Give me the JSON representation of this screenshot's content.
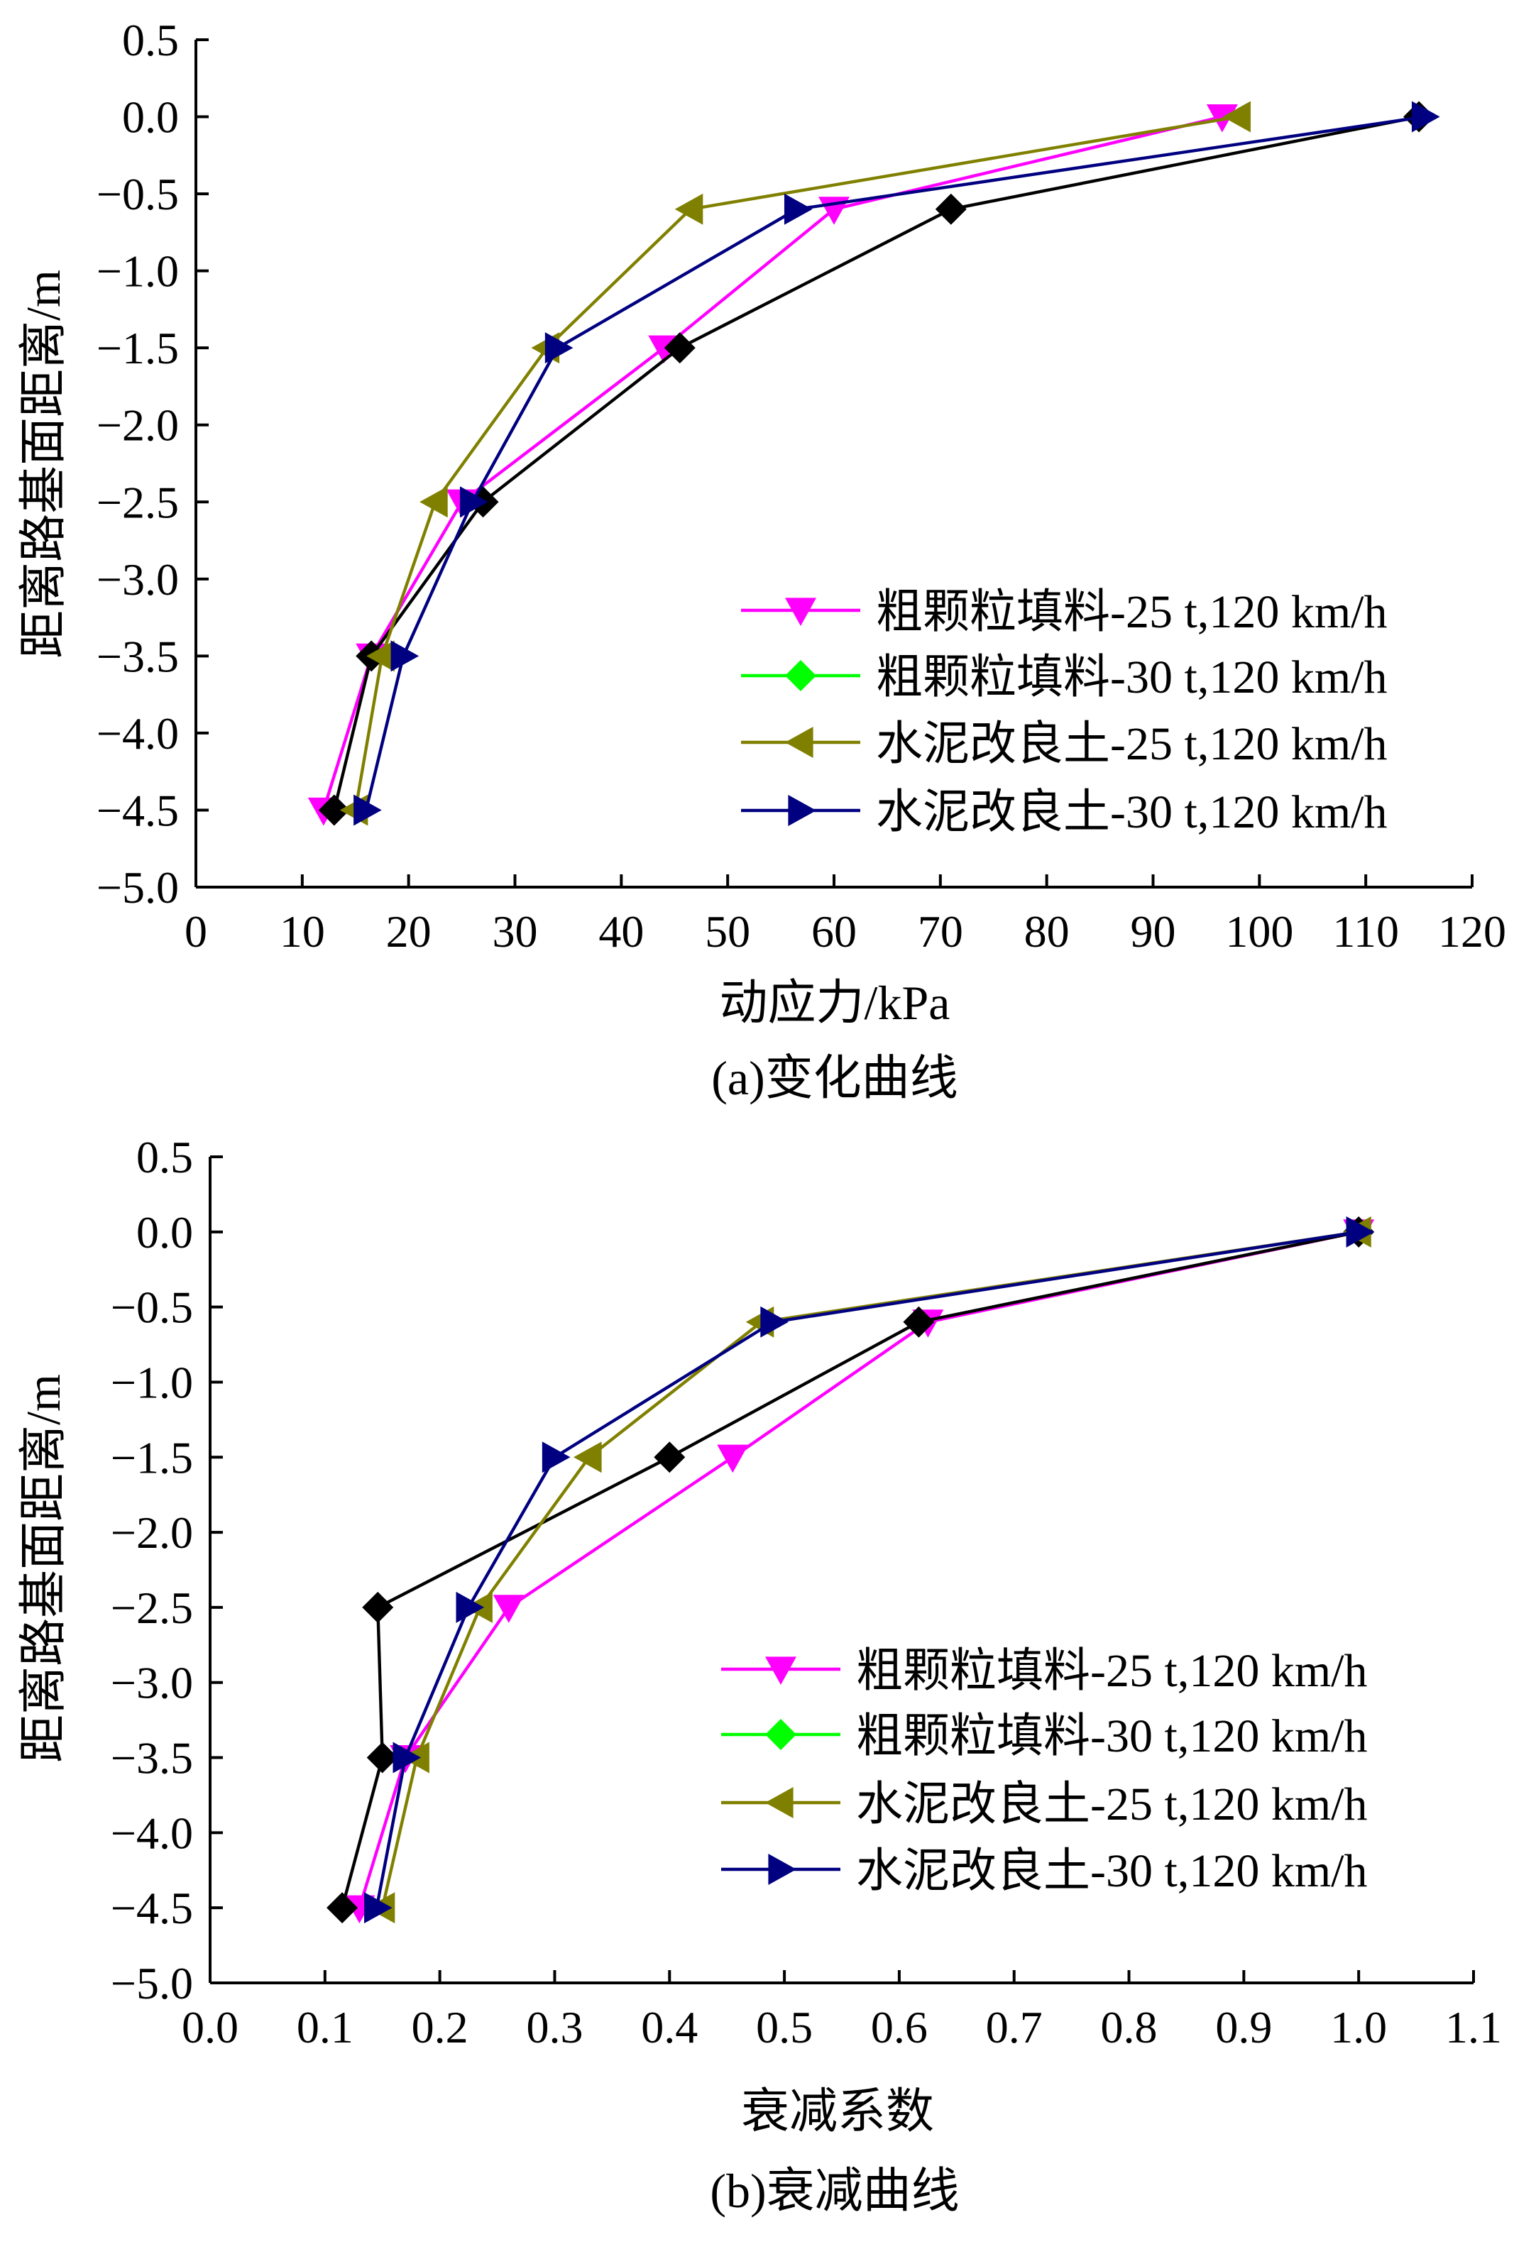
{
  "chart_data": [
    {
      "type": "line",
      "caption": "(a)变化曲线",
      "xlabel": "动应力/kPa",
      "ylabel": "距离路基面距离/m",
      "xlim": [
        0,
        120
      ],
      "ylim": [
        -5.0,
        0.5
      ],
      "xticks": [
        "0",
        "10",
        "20",
        "30",
        "40",
        "50",
        "60",
        "70",
        "80",
        "90",
        "100",
        "110",
        "120"
      ],
      "yticks": [
        "0.5",
        "0.0",
        "-0.5",
        "-1.0",
        "-1.5",
        "-2.0",
        "-2.5",
        "-3.0",
        "-3.5",
        "-4.0",
        "-4.5",
        "-5.0"
      ],
      "grid": false,
      "legend_position": "bottom-right",
      "y": [
        0,
        -0.6,
        -1.5,
        -2.5,
        -3.5,
        -4.5
      ],
      "series": [
        {
          "name": "粗颗粒填料-25 t,120 km/h",
          "color": "#ff00ff",
          "line_color": "#ff00ff",
          "marker": "triangle-down",
          "x": [
            96.5,
            60,
            44,
            25,
            16.5,
            12
          ]
        },
        {
          "name": "粗颗粒填料-30 t,120 km/h",
          "color": "#00ff00",
          "line_color": "#000000",
          "marker": "diamond",
          "x": [
            115,
            71,
            45.5,
            27,
            16.5,
            13
          ]
        },
        {
          "name": "水泥改良土-25 t,120 km/h",
          "color": "#808000",
          "line_color": "#808000",
          "marker": "triangle-left",
          "x": [
            98,
            46.5,
            33,
            22.5,
            17.5,
            15
          ]
        },
        {
          "name": "水泥改良土-30 t,120 km/h",
          "color": "#000080",
          "line_color": "#000080",
          "marker": "triangle-right",
          "x": [
            115.5,
            56.5,
            34,
            26,
            19.5,
            16
          ]
        }
      ]
    },
    {
      "type": "line",
      "caption": "(b)衰减曲线",
      "xlabel": "衰减系数",
      "ylabel": "距离路基面距离/m",
      "xlim": [
        0.0,
        1.1
      ],
      "ylim": [
        -5.0,
        0.5
      ],
      "xticks": [
        "0.0",
        "0.1",
        "0.2",
        "0.3",
        "0.4",
        "0.5",
        "0.6",
        "0.7",
        "0.8",
        "0.9",
        "1.0",
        "1.1"
      ],
      "yticks": [
        "0.5",
        "0.0",
        "-0.5",
        "-1.0",
        "-1.5",
        "-2.0",
        "-2.5",
        "-3.0",
        "-3.5",
        "-4.0",
        "-4.5",
        "-5.0"
      ],
      "grid": false,
      "legend_position": "bottom-right",
      "y": [
        0,
        -0.6,
        -1.5,
        -2.5,
        -3.5,
        -4.5
      ],
      "series": [
        {
          "name": "粗颗粒填料-25 t,120 km/h",
          "color": "#ff00ff",
          "line_color": "#ff00ff",
          "marker": "triangle-down",
          "x": [
            1.0,
            0.625,
            0.455,
            0.26,
            0.17,
            0.13
          ]
        },
        {
          "name": "粗颗粒填料-30 t,120 km/h",
          "color": "#00ff00",
          "line_color": "#000000",
          "marker": "diamond",
          "x": [
            1.0,
            0.617,
            0.4,
            0.146,
            0.15,
            0.115
          ]
        },
        {
          "name": "水泥改良土-25 t,120 km/h",
          "color": "#808000",
          "line_color": "#808000",
          "marker": "triangle-left",
          "x": [
            1.0,
            0.48,
            0.33,
            0.235,
            0.18,
            0.15
          ]
        },
        {
          "name": "水泥改良土-30 t,120 km/h",
          "color": "#000080",
          "line_color": "#000080",
          "marker": "triangle-right",
          "x": [
            1.0,
            0.49,
            0.3,
            0.225,
            0.17,
            0.145
          ]
        }
      ]
    }
  ]
}
